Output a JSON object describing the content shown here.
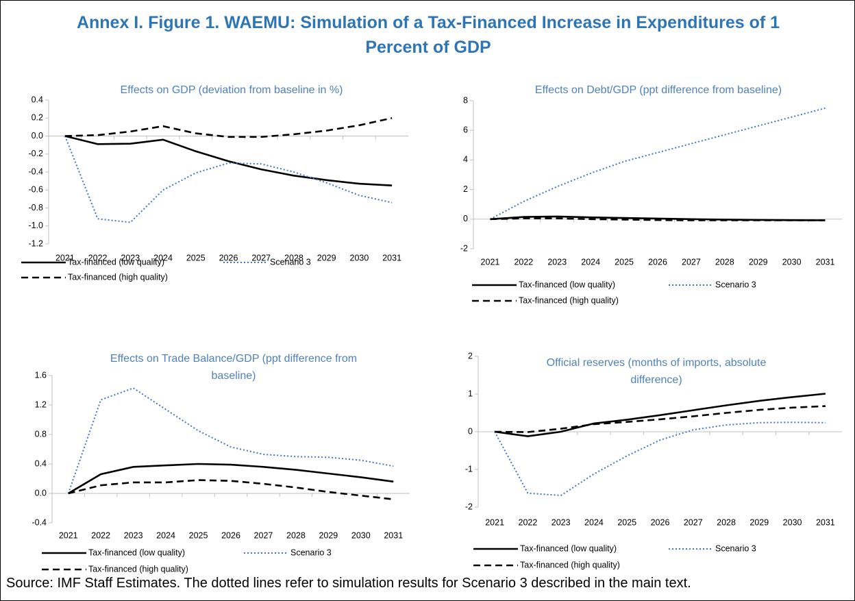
{
  "title": "Annex I. Figure 1. WAEMU: Simulation of a Tax-Financed Increase in Expenditures of 1 Percent of GDP",
  "source": "Source: IMF Staff Estimates. The dotted lines refer to simulation results for Scenario 3 described in the main text.",
  "chart_data": [
    {
      "type": "line",
      "title": "Effects on GDP (deviation from baseline in %)",
      "categories": [
        "2021",
        "2022",
        "2023",
        "2024",
        "2025",
        "2026",
        "2027",
        "2028",
        "2029",
        "2030",
        "2031"
      ],
      "series": [
        {
          "name": "Tax-financed (low quality)",
          "color": "#000000",
          "style": "solid",
          "values": [
            0,
            -0.09,
            -0.085,
            -0.04,
            -0.17,
            -0.28,
            -0.37,
            -0.44,
            -0.49,
            -0.53,
            -0.55
          ]
        },
        {
          "name": "Scenario 3",
          "color": "#4472c4",
          "style": "dotted",
          "values": [
            0,
            -0.92,
            -0.96,
            -0.6,
            -0.41,
            -0.3,
            -0.31,
            -0.4,
            -0.52,
            -0.66,
            -0.74
          ]
        },
        {
          "name": "Tax-financed (high quality)",
          "color": "#000000",
          "style": "dashed",
          "values": [
            0,
            0.01,
            0.05,
            0.11,
            0.03,
            -0.01,
            -0.01,
            0.02,
            0.06,
            0.12,
            0.2
          ]
        }
      ],
      "ylim": [
        -1.2,
        0.4
      ],
      "yticks": [
        -1.2,
        {
          "value": -1,
          "label": "-1.0"
        },
        -0.8,
        -0.6,
        -0.4,
        -0.2,
        {
          "value": 0,
          "label": "0.0"
        },
        0.2,
        0.4
      ]
    },
    {
      "type": "line",
      "title": "Effects on Debt/GDP (ppt difference from baseline)",
      "categories": [
        "2021",
        "2022",
        "2023",
        "2024",
        "2025",
        "2026",
        "2027",
        "2028",
        "2029",
        "2030",
        "2031"
      ],
      "series": [
        {
          "name": "Tax-financed (low quality)",
          "color": "#000000",
          "style": "solid",
          "values": [
            0,
            0.15,
            0.18,
            0.12,
            0.08,
            0.04,
            0,
            -0.03,
            -0.05,
            -0.07,
            -0.08
          ]
        },
        {
          "name": "Scenario 3",
          "color": "#4472c4",
          "style": "dotted",
          "values": [
            0,
            1.2,
            2.2,
            3.1,
            3.9,
            4.5,
            5.1,
            5.7,
            6.3,
            6.9,
            7.5
          ]
        },
        {
          "name": "Tax-financed (high quality)",
          "color": "#000000",
          "style": "dashed",
          "values": [
            0,
            0.05,
            0.05,
            0,
            -0.03,
            -0.06,
            -0.08,
            -0.08,
            -0.08,
            -0.08,
            -0.08
          ]
        }
      ],
      "ylim": [
        -2,
        8
      ],
      "yticks": [
        -2,
        0,
        2,
        4,
        6,
        8
      ]
    },
    {
      "type": "line",
      "title": "Effects on Trade Balance/GDP (ppt difference from baseline)",
      "categories": [
        "2021",
        "2022",
        "2023",
        "2024",
        "2025",
        "2026",
        "2027",
        "2028",
        "2029",
        "2030",
        "2031"
      ],
      "series": [
        {
          "name": "Tax-financed (low quality)",
          "color": "#000000",
          "style": "solid",
          "values": [
            0,
            0.26,
            0.36,
            0.38,
            0.4,
            0.39,
            0.36,
            0.32,
            0.27,
            0.22,
            0.16
          ]
        },
        {
          "name": "Scenario 3",
          "color": "#4472c4",
          "style": "dotted",
          "values": [
            0,
            1.27,
            1.43,
            1.14,
            0.85,
            0.63,
            0.53,
            0.5,
            0.49,
            0.45,
            0.37
          ]
        },
        {
          "name": "Tax-financed (high quality)",
          "color": "#000000",
          "style": "dashed",
          "values": [
            0,
            0.11,
            0.15,
            0.15,
            0.18,
            0.17,
            0.13,
            0.08,
            0.02,
            -0.03,
            -0.08
          ]
        }
      ],
      "ylim": [
        -0.4,
        1.6
      ],
      "yticks": [
        -0.4,
        {
          "value": 0,
          "label": "0.0"
        },
        0.4,
        0.8,
        1.2,
        1.6
      ]
    },
    {
      "type": "line",
      "title": "Official reserves (months of imports, absolute difference)",
      "categories": [
        "2021",
        "2022",
        "2023",
        "2024",
        "2025",
        "2026",
        "2027",
        "2028",
        "2029",
        "2030",
        "2031"
      ],
      "series": [
        {
          "name": "Tax-financed (low quality)",
          "color": "#000000",
          "style": "solid",
          "values": [
            0,
            -0.12,
            0,
            0.22,
            0.32,
            0.44,
            0.57,
            0.7,
            0.82,
            0.92,
            1.01
          ]
        },
        {
          "name": "Scenario 3",
          "color": "#4472c4",
          "style": "dotted",
          "values": [
            0,
            -1.63,
            -1.69,
            -1.12,
            -0.64,
            -0.22,
            0.05,
            0.18,
            0.24,
            0.25,
            0.24
          ]
        },
        {
          "name": "Tax-financed (high quality)",
          "color": "#000000",
          "style": "dashed",
          "values": [
            0,
            -0.01,
            0.08,
            0.2,
            0.26,
            0.33,
            0.41,
            0.5,
            0.58,
            0.64,
            0.68
          ]
        }
      ],
      "ylim": [
        -2,
        2
      ],
      "yticks": [
        -2,
        -1,
        0,
        1,
        2
      ]
    }
  ]
}
